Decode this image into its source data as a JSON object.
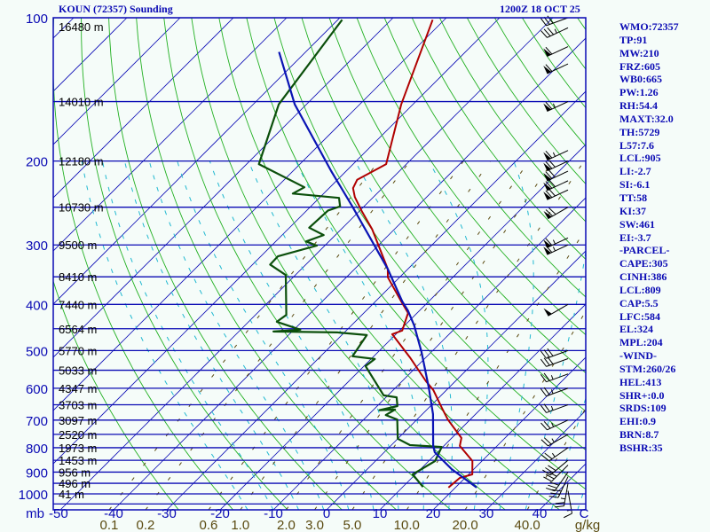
{
  "header": {
    "title": "KOUN (72357) Sounding",
    "time": "1200Z 18 OCT 25"
  },
  "stats": [
    "WMO:72357",
    "TP:91",
    "MW:210",
    "FRZ:605",
    "WB0:665",
    "PW:1.26",
    "RH:54.4",
    "MAXT:32.0",
    "TH:5729",
    "L57:7.6",
    "LCL:905",
    "LI:-2.7",
    "SI:-6.1",
    "TT:58",
    "KI:37",
    "SW:461",
    "EI:-3.7",
    "-PARCEL-",
    "CAPE:305",
    "CINH:386",
    "LCL:809",
    "CAP:5.5",
    "LFC:584",
    "EL:324",
    "MPL:204",
    "-WIND-",
    "STM:260/26",
    "HEL:413",
    "SHR+:0.0",
    "SRDS:109",
    "EHI:0.9",
    "BRN:8.7",
    "BSHR:35"
  ],
  "colors": {
    "temperature": "#b00000",
    "dewpoint": "#0b4f0b",
    "parcel": "#0a14b4",
    "isobar": "#0a0ab4",
    "isotherm": "#0a0ab4",
    "dry_adiabat": "#22b022",
    "moist_adiabat": "#20b8d0",
    "mixing_ratio": "#5a4a10",
    "label": "#0a0ab4",
    "mixing_label": "#5a4a10"
  },
  "chart_data": {
    "type": "line",
    "subtype": "skew-T log-P sounding",
    "title": "KOUN (72357) Sounding",
    "subtitle": "1200Z 18 OCT 25",
    "xlabel": "C",
    "ylabel": "mb",
    "x_ticks": [
      "-50",
      "-40",
      "-30",
      "-20",
      "-10",
      "0",
      "10",
      "20",
      "30",
      "40"
    ],
    "x_tick_values": [
      -50,
      -40,
      -30,
      -20,
      -10,
      0,
      10,
      20,
      30,
      40
    ],
    "pressure_ticks": [
      "100",
      "200",
      "300",
      "400",
      "500",
      "600",
      "700",
      "800",
      "900",
      "1000"
    ],
    "pressure_tick_values": [
      100,
      200,
      300,
      400,
      500,
      600,
      700,
      800,
      900,
      1000
    ],
    "height_labels": [
      {
        "p": 100,
        "label": "16480 m"
      },
      {
        "p": 150,
        "label": "14010 m"
      },
      {
        "p": 200,
        "label": "12180 m"
      },
      {
        "p": 250,
        "label": "10730 m"
      },
      {
        "p": 300,
        "label": "9500 m"
      },
      {
        "p": 350,
        "label": "8410 m"
      },
      {
        "p": 400,
        "label": "7440 m"
      },
      {
        "p": 450,
        "label": "6564 m"
      },
      {
        "p": 500,
        "label": "5770 m"
      },
      {
        "p": 550,
        "label": "5033 m"
      },
      {
        "p": 600,
        "label": "4347 m"
      },
      {
        "p": 650,
        "label": "3703 m"
      },
      {
        "p": 700,
        "label": "3097 m"
      },
      {
        "p": 750,
        "label": "2520 m"
      },
      {
        "p": 800,
        "label": "1973 m"
      },
      {
        "p": 850,
        "label": "1453 m"
      },
      {
        "p": 900,
        "label": "956 m"
      },
      {
        "p": 950,
        "label": "496 m"
      },
      {
        "p": 1000,
        "label": "41 m"
      }
    ],
    "mixing_ratio_unit": "g/kg",
    "mixing_ratio_labels": [
      "0.1",
      "0.2",
      "0.6",
      "1.0",
      "2.0",
      "3.0",
      "5.0",
      "10.0",
      "20.0",
      "40.0"
    ],
    "mixing_ratio_values": [
      0.1,
      0.2,
      0.6,
      1.0,
      2.0,
      3.0,
      5.0,
      10.0,
      20.0,
      40.0
    ],
    "ylim": [
      1082,
      100
    ],
    "series": [
      {
        "name": "temperature",
        "points": [
          [
            970,
            18.7
          ],
          [
            926,
            19.0
          ],
          [
            910,
            20.7
          ],
          [
            853,
            18.2
          ],
          [
            793,
            13.0
          ],
          [
            763,
            11.8
          ],
          [
            698,
            5.8
          ],
          [
            660,
            2.5
          ],
          [
            605,
            -2.5
          ],
          [
            580,
            -5.5
          ],
          [
            517,
            -13
          ],
          [
            462,
            -20.7
          ],
          [
            454,
            -19.5
          ],
          [
            417,
            -21.7
          ],
          [
            394,
            -25.2
          ],
          [
            351,
            -32.2
          ],
          [
            337,
            -33.8
          ],
          [
            278,
            -44.2
          ],
          [
            255,
            -49.5
          ],
          [
            238,
            -53.5
          ],
          [
            228,
            -55.5
          ],
          [
            219,
            -56.3
          ],
          [
            203,
            -53.8
          ],
          [
            152,
            -62.2
          ],
          [
            101,
            -72.2
          ]
        ]
      },
      {
        "name": "dewpoint",
        "points": [
          [
            967,
            13.8
          ],
          [
            910,
            9.5
          ],
          [
            853,
            11.2
          ],
          [
            797,
            9.8
          ],
          [
            790,
            3.5
          ],
          [
            766,
            0
          ],
          [
            698,
            -3.7
          ],
          [
            683,
            -6.7
          ],
          [
            665,
            -6
          ],
          [
            667,
            -8.8
          ],
          [
            654,
            -6.2
          ],
          [
            627,
            -8
          ],
          [
            621,
            -10.8
          ],
          [
            539,
            -19.7
          ],
          [
            521,
            -19.3
          ],
          [
            514,
            -24
          ],
          [
            464,
            -25.3
          ],
          [
            458,
            -31.3
          ],
          [
            456,
            -43.5
          ],
          [
            452,
            -38.8
          ],
          [
            435,
            -44.7
          ],
          [
            421,
            -44.2
          ],
          [
            394,
            -46.8
          ],
          [
            347,
            -51.8
          ],
          [
            330,
            -56.7
          ],
          [
            317,
            -56.8
          ],
          [
            301,
            -51.5
          ],
          [
            295,
            -54.3
          ],
          [
            286,
            -52.2
          ],
          [
            276,
            -56.3
          ],
          [
            254,
            -56
          ],
          [
            249,
            -54.5
          ],
          [
            239,
            -56.3
          ],
          [
            234,
            -65.8
          ],
          [
            227,
            -64.8
          ],
          [
            203,
            -77.7
          ],
          [
            152,
            -85.2
          ],
          [
            101,
            -89.2
          ]
        ]
      },
      {
        "name": "parcel",
        "points": [
          [
            970,
            24
          ],
          [
            887,
            15.8
          ],
          [
            818,
            9.5
          ],
          [
            793,
            8
          ],
          [
            680,
            2
          ],
          [
            598,
            -3.8
          ],
          [
            504,
            -11.8
          ],
          [
            443,
            -18.2
          ],
          [
            412,
            -22.2
          ],
          [
            394,
            -25
          ],
          [
            337,
            -33.8
          ],
          [
            249,
            -52.2
          ],
          [
            210,
            -62.8
          ],
          [
            152,
            -82.2
          ],
          [
            118,
            -95
          ]
        ]
      }
    ],
    "wind_barbs": [
      {
        "p": 985,
        "dir": 170,
        "kt": 15
      },
      {
        "p": 950,
        "dir": 190,
        "kt": 25
      },
      {
        "p": 920,
        "dir": 205,
        "kt": 30
      },
      {
        "p": 900,
        "dir": 215,
        "kt": 30
      },
      {
        "p": 870,
        "dir": 225,
        "kt": 30
      },
      {
        "p": 850,
        "dir": 230,
        "kt": 30
      },
      {
        "p": 800,
        "dir": 235,
        "kt": 25
      },
      {
        "p": 750,
        "dir": 240,
        "kt": 25
      },
      {
        "p": 700,
        "dir": 245,
        "kt": 25
      },
      {
        "p": 650,
        "dir": 250,
        "kt": 25
      },
      {
        "p": 600,
        "dir": 250,
        "kt": 25
      },
      {
        "p": 560,
        "dir": 250,
        "kt": 25
      },
      {
        "p": 520,
        "dir": 250,
        "kt": 30
      },
      {
        "p": 500,
        "dir": 250,
        "kt": 30
      },
      {
        "p": 400,
        "dir": 240,
        "kt": 50
      },
      {
        "p": 300,
        "dir": 245,
        "kt": 65
      },
      {
        "p": 290,
        "dir": 245,
        "kt": 65
      },
      {
        "p": 250,
        "dir": 240,
        "kt": 70
      },
      {
        "p": 230,
        "dir": 245,
        "kt": 70
      },
      {
        "p": 220,
        "dir": 245,
        "kt": 70
      },
      {
        "p": 210,
        "dir": 245,
        "kt": 70
      },
      {
        "p": 200,
        "dir": 245,
        "kt": 70
      },
      {
        "p": 190,
        "dir": 245,
        "kt": 65
      },
      {
        "p": 150,
        "dir": 245,
        "kt": 65
      },
      {
        "p": 125,
        "dir": 245,
        "kt": 60
      },
      {
        "p": 115,
        "dir": 245,
        "kt": 60
      },
      {
        "p": 105,
        "dir": 245,
        "kt": 35
      },
      {
        "p": 100,
        "dir": 250,
        "kt": 30
      }
    ]
  }
}
